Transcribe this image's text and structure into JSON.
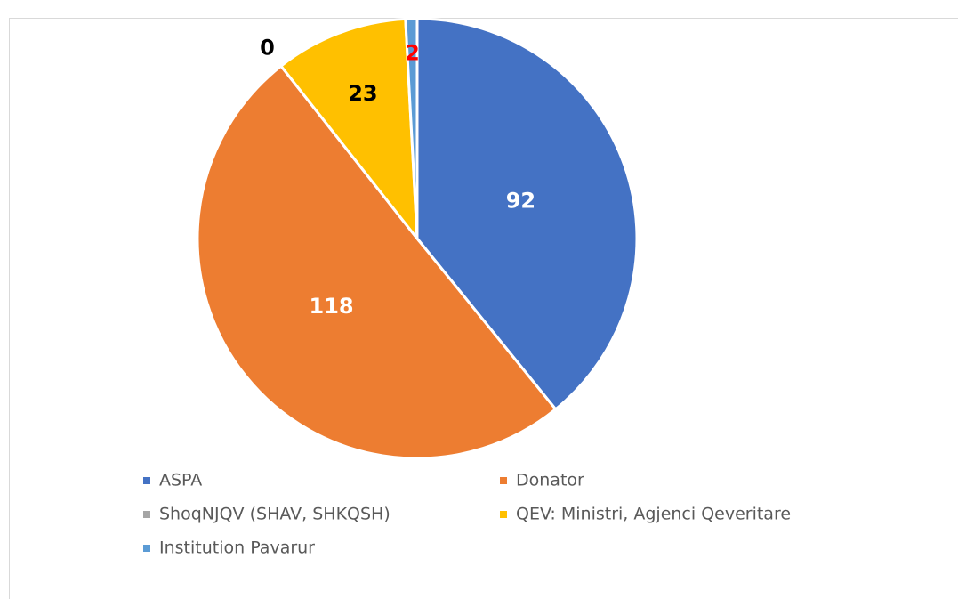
{
  "chart_data": {
    "type": "pie",
    "categories": [
      "ASPA",
      "Donator",
      "ShoqNJQV (SHAV, SHKQSH)",
      "QEV: Ministri, Agjenci Qeveritare",
      "Institution Pavarur"
    ],
    "values": [
      92,
      118,
      0,
      23,
      2
    ],
    "colors": [
      "#4472c4",
      "#ed7d31",
      "#a5a5a5",
      "#ffc000",
      "#5b9bd5"
    ],
    "label_colors": [
      "#ffffff",
      "#ffffff",
      "#000000",
      "#000000",
      "#ff0000"
    ],
    "legend": "bottom"
  }
}
